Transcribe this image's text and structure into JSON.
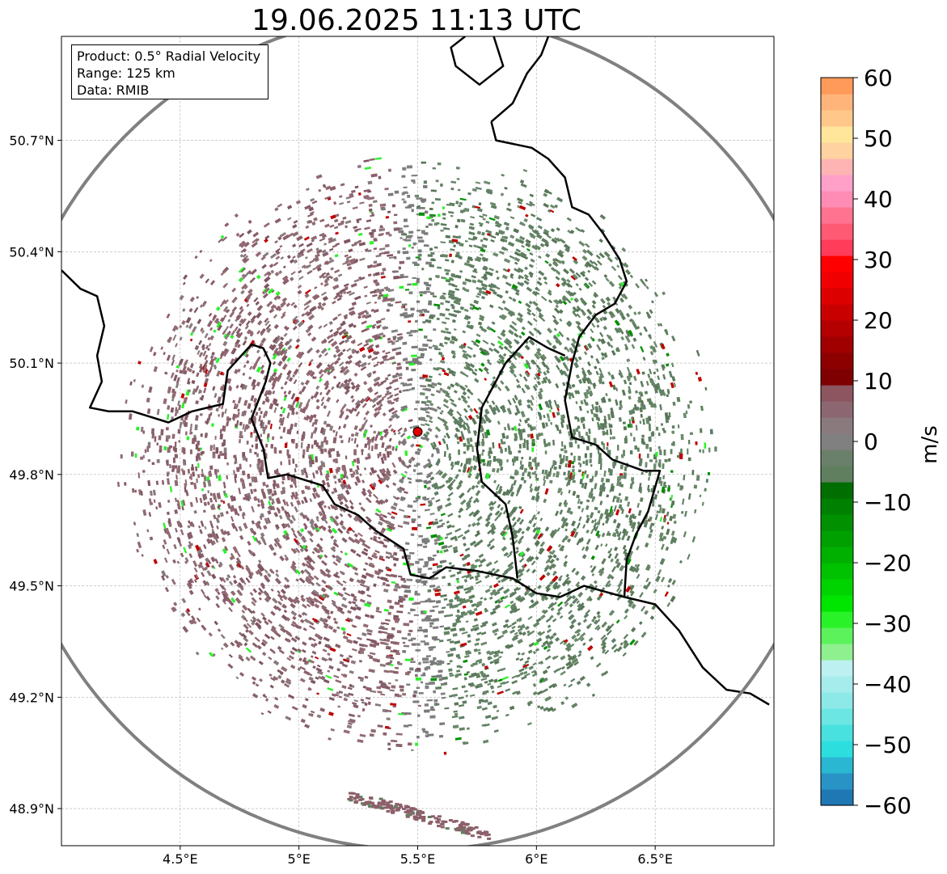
{
  "title": "19.06.2025 11:13 UTC",
  "info": {
    "product": "Product: 0.5° Radial Velocity",
    "range": "Range: 125 km",
    "source": "Data: RMIB"
  },
  "map": {
    "lon_range": [
      4.0,
      7.0
    ],
    "lat_range": [
      48.8,
      50.98
    ],
    "radar_site": {
      "name": "radar-site",
      "lon": 5.5,
      "lat": 49.915
    },
    "range_ring_km": 125,
    "x_ticks": [
      {
        "value": 4.5,
        "label": "4.5°E"
      },
      {
        "value": 5.0,
        "label": "5°E"
      },
      {
        "value": 5.5,
        "label": "5.5°E"
      },
      {
        "value": 6.0,
        "label": "6°E"
      },
      {
        "value": 6.5,
        "label": "6.5°E"
      }
    ],
    "y_ticks": [
      {
        "value": 48.9,
        "label": "48.9°N"
      },
      {
        "value": 49.2,
        "label": "49.2°N"
      },
      {
        "value": 49.5,
        "label": "49.5°N"
      },
      {
        "value": 49.8,
        "label": "49.8°N"
      },
      {
        "value": 50.1,
        "label": "50.1°N"
      },
      {
        "value": 50.4,
        "label": "50.4°N"
      },
      {
        "value": 50.7,
        "label": "50.7°N"
      }
    ],
    "echo_center": {
      "lon": 5.5,
      "lat": 49.86
    },
    "echo_radius_km": 92,
    "colors": {
      "ring": "#808080",
      "border": "#000000",
      "grid": "#b0b0b0",
      "site": "#e00000",
      "receding": "#8c5f6a",
      "approaching": "#5f7f5f",
      "strong_receding": "#c00000",
      "strong_approaching": "#009000"
    }
  },
  "colorbar": {
    "unit": "m/s",
    "vmin": -60,
    "vmax": 60,
    "ticks": [
      {
        "value": 60,
        "label": "60"
      },
      {
        "value": 50,
        "label": "50"
      },
      {
        "value": 40,
        "label": "40"
      },
      {
        "value": 30,
        "label": "30"
      },
      {
        "value": 20,
        "label": "20"
      },
      {
        "value": 10,
        "label": "10"
      },
      {
        "value": 0,
        "label": "0"
      },
      {
        "value": -10,
        "label": "−10"
      },
      {
        "value": -20,
        "label": "−20"
      },
      {
        "value": -30,
        "label": "−30"
      },
      {
        "value": -40,
        "label": "−40"
      },
      {
        "value": -50,
        "label": "−50"
      },
      {
        "value": -60,
        "label": "−60"
      }
    ],
    "bands": [
      "#1f77b4",
      "#2a93c6",
      "#2ab7d2",
      "#2ddedf",
      "#49e1df",
      "#6be6e3",
      "#8de9e8",
      "#a6ecec",
      "#bdf0f0",
      "#8ff08f",
      "#5cf25c",
      "#29f229",
      "#00e600",
      "#00d400",
      "#00c200",
      "#00b000",
      "#00a000",
      "#009000",
      "#008000",
      "#006e00",
      "#5f7f5f",
      "#6b806b",
      "#808080",
      "#8a7a7d",
      "#8c6772",
      "#8c5560",
      "#7f0000",
      "#8c0000",
      "#a00000",
      "#b40000",
      "#c80000",
      "#dc0000",
      "#f00000",
      "#ff0000",
      "#ff3c5a",
      "#ff5a74",
      "#ff7390",
      "#ff8cb4",
      "#ffa0c8",
      "#ffb4b4",
      "#ffd2a0",
      "#ffe69a",
      "#ffc88a",
      "#ffb47a",
      "#ff9a5a"
    ]
  }
}
